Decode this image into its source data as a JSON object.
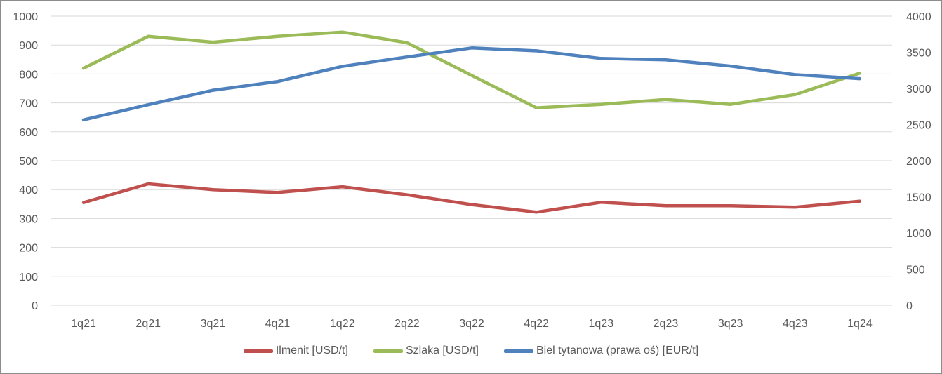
{
  "chart_data": {
    "type": "line",
    "categories": [
      "1q21",
      "2q21",
      "3q21",
      "4q21",
      "1q22",
      "2q22",
      "3q22",
      "4q22",
      "1q23",
      "2q23",
      "3q23",
      "4q23",
      "1q24"
    ],
    "series": [
      {
        "name": "Ilmenit [USD/t]",
        "axis": "left",
        "color": "#c0504d",
        "values": [
          355,
          420,
          400,
          390,
          410,
          382,
          348,
          322,
          356,
          344,
          344,
          339,
          360
        ]
      },
      {
        "name": "Szlaka [USD/t]",
        "axis": "left",
        "color": "#9bbb59",
        "values": [
          820,
          930,
          910,
          930,
          945,
          908,
          795,
          683,
          695,
          712,
          695,
          729,
          803
        ]
      },
      {
        "name": "Biel tytanowa (prawa oś) [EUR/t]",
        "axis": "right",
        "color": "#4f81bd",
        "values": [
          2565,
          2775,
          2975,
          3095,
          3305,
          3435,
          3560,
          3520,
          3415,
          3395,
          3310,
          3190,
          3135
        ]
      }
    ],
    "y_left": {
      "min": 0,
      "max": 1000,
      "step": 100,
      "ticks": [
        "0",
        "100",
        "200",
        "300",
        "400",
        "500",
        "600",
        "700",
        "800",
        "900",
        "1000"
      ]
    },
    "y_right": {
      "min": 0,
      "max": 4000,
      "step": 500,
      "ticks": [
        "0",
        "500",
        "1000",
        "1500",
        "2000",
        "2500",
        "3000",
        "3500",
        "4000"
      ]
    },
    "grid": true,
    "legend_position": "bottom"
  }
}
